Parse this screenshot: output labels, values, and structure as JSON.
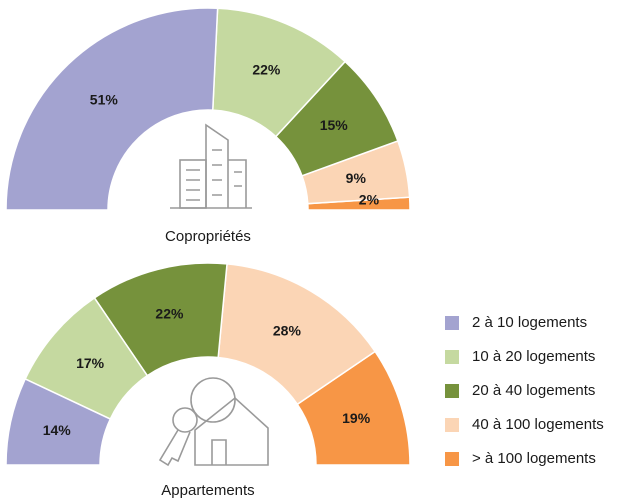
{
  "chart_data": [
    {
      "type": "pie",
      "title": "Copropriétés",
      "categories": [
        "2 à 10 logements",
        "10 à 20 logements",
        "20 à 40 logements",
        "40 à 100 logements",
        "> à 100 logements"
      ],
      "values": [
        51,
        22,
        15,
        9,
        2
      ],
      "value_labels": [
        "51%",
        "22%",
        "15%",
        "9%",
        "2%"
      ],
      "colors": [
        "#a3a3d0",
        "#c5d9a0",
        "#76923c",
        "#fbd5b5",
        "#f79646"
      ]
    },
    {
      "type": "pie",
      "title": "Appartements",
      "categories": [
        "2 à 10 logements",
        "10 à 20 logements",
        "20 à 40 logements",
        "40 à 100 logements",
        "> à 100 logements"
      ],
      "values": [
        14,
        17,
        22,
        28,
        19
      ],
      "value_labels": [
        "14%",
        "17%",
        "22%",
        "28%",
        "19%"
      ],
      "colors": [
        "#a3a3d0",
        "#c5d9a0",
        "#76923c",
        "#fbd5b5",
        "#f79646"
      ]
    }
  ]
}
